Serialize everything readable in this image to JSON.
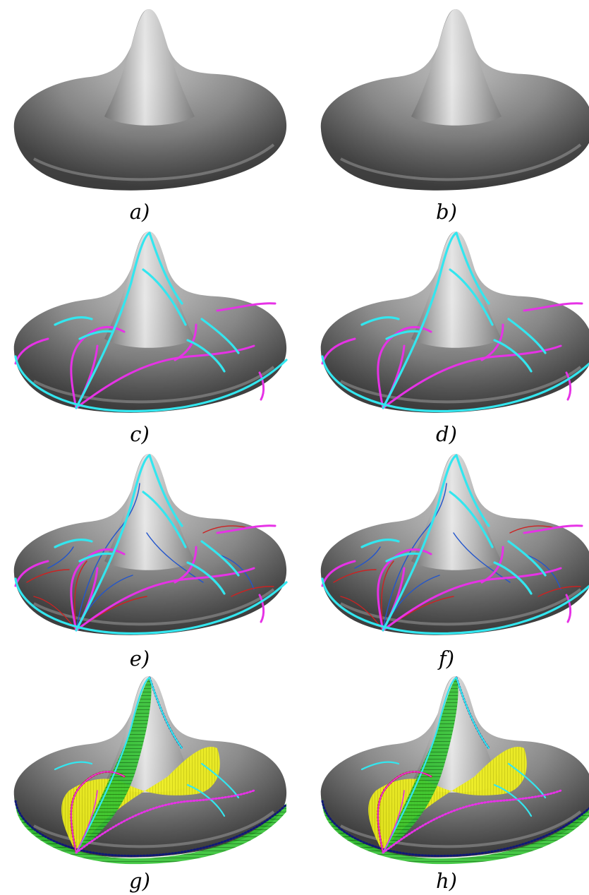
{
  "panels": [
    {
      "id": "a",
      "caption": "a)",
      "curves": "none"
    },
    {
      "id": "b",
      "caption": "b)",
      "curves": "none"
    },
    {
      "id": "c",
      "caption": "c)",
      "curves": "lines"
    },
    {
      "id": "d",
      "caption": "d)",
      "curves": "lines"
    },
    {
      "id": "e",
      "caption": "e)",
      "curves": "lines-thin"
    },
    {
      "id": "f",
      "caption": "f)",
      "curves": "lines-thin"
    },
    {
      "id": "g",
      "caption": "g)",
      "curves": "strips"
    },
    {
      "id": "h",
      "caption": "h)",
      "curves": "strips"
    }
  ],
  "colors": {
    "ridge": "#33e6ef",
    "valley": "#e632e6",
    "thin_blue": "#2255cc",
    "thin_red": "#cc2222",
    "strip_yellow": "#f2f21a",
    "strip_green": "#1ea81e",
    "strip_darkblue": "#101878"
  }
}
